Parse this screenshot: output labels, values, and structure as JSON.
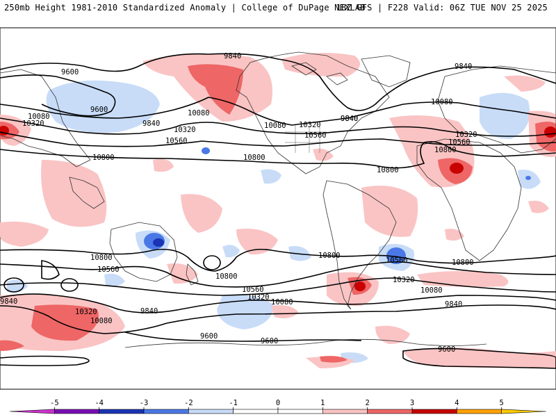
{
  "header": {
    "left": "250mb Height 1981-2010 Standardized Anomaly | College of DuPage NEXLAB",
    "right": "18Z GFS | F228 Valid: 06Z TUE NOV 25 2025"
  },
  "colorbar": {
    "ticks": [
      "-5",
      "-4",
      "-3",
      "-2",
      "-1",
      "0",
      "1",
      "2",
      "3",
      "4",
      "5"
    ],
    "colors": [
      "#cc33cc",
      "#7a0fb5",
      "#1a34b5",
      "#4a78e6",
      "#c8dcf8",
      "#ffffff",
      "#ffffff",
      "#fac4c4",
      "#ee6666",
      "#c80000",
      "#ffa200",
      "#ffcc00"
    ]
  },
  "contour_labels": [
    "9840",
    "9600",
    "9600",
    "9840",
    "10080",
    "10080",
    "10320",
    "10320",
    "10560",
    "10800",
    "9840",
    "10080",
    "10320",
    "10560",
    "9840",
    "10800",
    "10800",
    "10080",
    "10320",
    "10560",
    "10800",
    "9840",
    "10800",
    "10560",
    "10800",
    "10800",
    "10560",
    "10320",
    "10080",
    "9840",
    "10320",
    "10080",
    "9840",
    "9600",
    "9600",
    "10560",
    "10320",
    "10080",
    "10800",
    "9840",
    "9600"
  ]
}
